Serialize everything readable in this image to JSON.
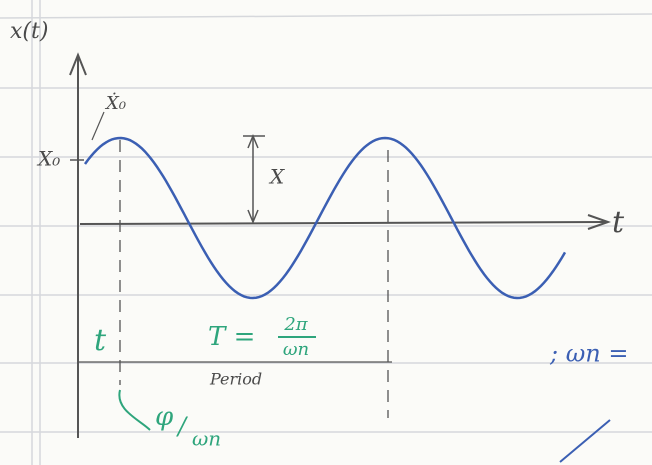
{
  "axes": {
    "y_label": "x(t)",
    "x_label": "t"
  },
  "annotations": {
    "initial_displacement": "X₀",
    "initial_velocity": "Ẋ₀",
    "amplitude": "X",
    "period_formula": {
      "lhs": "T =",
      "numerator": "2π",
      "denominator": "ωn"
    },
    "period_label": "Period",
    "time_shift": "t",
    "phase": {
      "numerator": "φ",
      "denominator": "ωn"
    },
    "frequency_note": "; ωn ="
  }
}
